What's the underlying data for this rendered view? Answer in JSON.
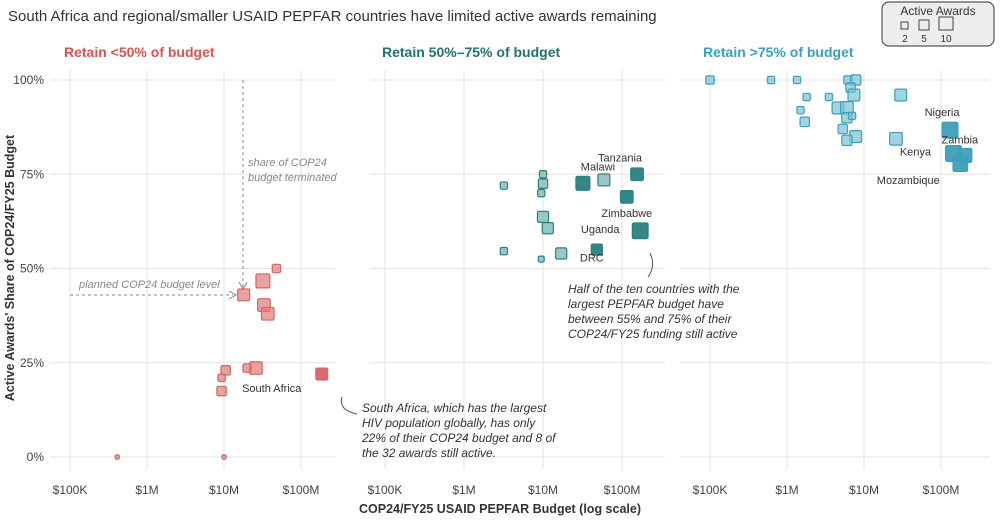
{
  "title": "South Africa and regional/smaller USAID PEPFAR countries have limited active awards remaining",
  "legend": {
    "title": "Active Awards",
    "sizes": [
      "2",
      "5",
      "10"
    ]
  },
  "chart_data": {
    "type": "scatter",
    "xlabel": "COP24/FY25 USAID PEPFAR Budget (log scale)",
    "ylabel": "Active Awards' Share of COP24/FY25 Budget",
    "x_scale": "log",
    "xlim": [
      56000,
      400000000
    ],
    "ylim": [
      0,
      100
    ],
    "x_ticks": [
      "$100K",
      "$1M",
      "$10M",
      "$100M"
    ],
    "y_ticks": [
      "0%",
      "25%",
      "50%",
      "75%",
      "100%"
    ],
    "grid": true,
    "size_legend": "Active Awards",
    "panels": [
      {
        "title": "Retain <50% of budget",
        "color": "#e07b7b",
        "dark": "#d66565",
        "title_color": "#d9534f",
        "points": [
          {
            "budget": 410000,
            "share": 0,
            "awards": 1
          },
          {
            "budget": 10000000,
            "share": 0,
            "awards": 1
          },
          {
            "budget": 48000000,
            "share": 50,
            "awards": 4
          },
          {
            "budget": 32000000,
            "share": 46.7,
            "awards": 11
          },
          {
            "budget": 18000000,
            "share": 43,
            "awards": 8
          },
          {
            "budget": 33000000,
            "share": 40.3,
            "awards": 9
          },
          {
            "budget": 37000000,
            "share": 38,
            "awards": 9
          },
          {
            "budget": 20000000,
            "share": 23.6,
            "awards": 4
          },
          {
            "budget": 26000000,
            "share": 23.6,
            "awards": 9
          },
          {
            "budget": 10500000,
            "share": 23,
            "awards": 5
          },
          {
            "budget": 9300000,
            "share": 21,
            "awards": 3
          },
          {
            "budget": 9300000,
            "share": 17.5,
            "awards": 5
          },
          {
            "budget": 186000000,
            "share": 22,
            "awards": 8,
            "label": "South Africa",
            "highlight": true
          }
        ]
      },
      {
        "title": "Retain 50%–75% of budget",
        "color": "#6fb0b0",
        "dark": "#2a8080",
        "title_color": "#1f7373",
        "points": [
          {
            "budget": 3200000,
            "share": 72,
            "awards": 3
          },
          {
            "budget": 10000000,
            "share": 75,
            "awards": 3
          },
          {
            "budget": 10000000,
            "share": 72.5,
            "awards": 5
          },
          {
            "budget": 9500000,
            "share": 70,
            "awards": 3
          },
          {
            "budget": 10000000,
            "share": 63.7,
            "awards": 7
          },
          {
            "budget": 11500000,
            "share": 60.7,
            "awards": 7
          },
          {
            "budget": 3200000,
            "share": 54.6,
            "awards": 3
          },
          {
            "budget": 9500000,
            "share": 52.5,
            "awards": 2
          },
          {
            "budget": 17000000,
            "share": 54,
            "awards": 7
          },
          {
            "budget": 59000000,
            "share": 73.5,
            "awards": 8
          },
          {
            "budget": 32000000,
            "share": 72.6,
            "awards": 11,
            "label": "Malawi",
            "highlight": true
          },
          {
            "budget": 155000000,
            "share": 75,
            "awards": 9,
            "label": "Tanzania",
            "highlight": true
          },
          {
            "budget": 115000000,
            "share": 69,
            "awards": 9,
            "label": "Zimbabwe",
            "highlight": true
          },
          {
            "budget": 170000000,
            "share": 60,
            "awards": 14,
            "label": "Uganda",
            "highlight": true
          },
          {
            "budget": 48000000,
            "share": 55,
            "awards": 7,
            "label": "DRC",
            "highlight": true
          }
        ]
      },
      {
        "title": "Retain >75% of budget",
        "color": "#7cc0d2",
        "dark": "#3d9fbb",
        "title_color": "#3a9fc0",
        "points": [
          {
            "budget": 100000,
            "share": 100,
            "awards": 4
          },
          {
            "budget": 620000,
            "share": 100,
            "awards": 3
          },
          {
            "budget": 1350000,
            "share": 100,
            "awards": 3
          },
          {
            "budget": 6200000,
            "share": 100,
            "awards": 4
          },
          {
            "budget": 7800000,
            "share": 100,
            "awards": 6
          },
          {
            "budget": 6700000,
            "share": 98,
            "awards": 5
          },
          {
            "budget": 7400000,
            "share": 96,
            "awards": 8
          },
          {
            "budget": 1800000,
            "share": 95.5,
            "awards": 3
          },
          {
            "budget": 3500000,
            "share": 95.5,
            "awards": 3
          },
          {
            "budget": 1500000,
            "share": 92,
            "awards": 3
          },
          {
            "budget": 4600000,
            "share": 92.6,
            "awards": 8
          },
          {
            "budget": 6000000,
            "share": 92.6,
            "awards": 9
          },
          {
            "budget": 6000000,
            "share": 90,
            "awards": 6
          },
          {
            "budget": 7000000,
            "share": 90.5,
            "awards": 3
          },
          {
            "budget": 1700000,
            "share": 88.9,
            "awards": 5
          },
          {
            "budget": 5300000,
            "share": 87,
            "awards": 5
          },
          {
            "budget": 7800000,
            "share": 85,
            "awards": 8
          },
          {
            "budget": 6000000,
            "share": 84,
            "awards": 6
          },
          {
            "budget": 30000000,
            "share": 96,
            "awards": 8
          },
          {
            "budget": 26000000,
            "share": 84.4,
            "awards": 9
          },
          {
            "budget": 131000000,
            "share": 86.7,
            "awards": 14,
            "label": "Nigeria",
            "highlight": true
          },
          {
            "budget": 145000000,
            "share": 80.5,
            "awards": 14,
            "label": "Kenya",
            "highlight": true
          },
          {
            "budget": 204000000,
            "share": 80,
            "awards": 11,
            "label": "Zambia",
            "highlight": true
          },
          {
            "budget": 178000000,
            "share": 77.7,
            "awards": 12,
            "label": "Mozambique",
            "highlight": true
          }
        ]
      }
    ],
    "annotations": {
      "terminated": [
        "share of COP24",
        "budget terminated"
      ],
      "planned": "planned COP24 budget level",
      "south_africa": [
        "South Africa, which has the largest",
        "HIV population globally, has only",
        "22% of their COP24 budget and 8 of",
        "the 32 awards still active."
      ],
      "top_ten": [
        "Half of the ten countries with the",
        "largest PEPFAR budget have",
        "between 55% and 75% of their",
        "COP24/FY25 funding still active"
      ]
    }
  }
}
